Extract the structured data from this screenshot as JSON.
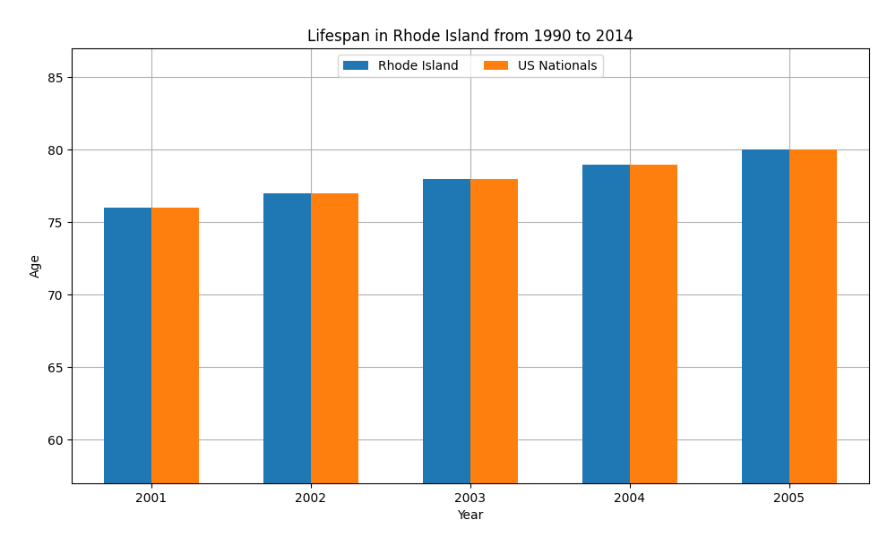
{
  "chart_data": {
    "type": "bar",
    "title": "Lifespan in Rhode Island from 1990 to 2014",
    "x_label": "Year",
    "y_label": "Age",
    "categories": [
      "2001",
      "2002",
      "2003",
      "2004",
      "2005"
    ],
    "series": [
      {
        "name": "Rhode Island",
        "values": [
          76,
          77,
          78,
          79,
          80
        ]
      },
      {
        "name": "US Nationals",
        "values": [
          76,
          77,
          78,
          79,
          80
        ]
      }
    ],
    "ylim": [
      57,
      87
    ],
    "yticks": [
      60,
      65,
      70,
      75,
      80,
      85
    ],
    "grid": true,
    "legend": "upper center"
  }
}
